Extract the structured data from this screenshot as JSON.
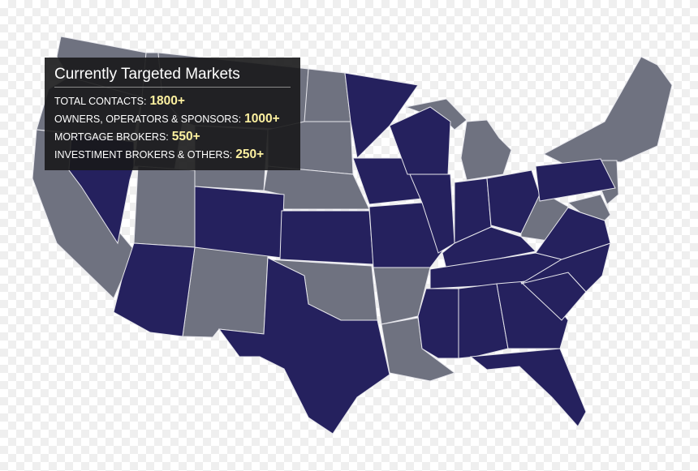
{
  "tooltip": {
    "title": "Currently Targeted Markets",
    "rows": [
      {
        "label": "TOTAL CONTACTS:",
        "value": "1800+"
      },
      {
        "label": "OWNERS, OPERATORS & SPONSORS:",
        "value": "1000+"
      },
      {
        "label": "MORTGAGE BROKERS:",
        "value": "550+"
      },
      {
        "label": "INVESTIMENT BROKERS & OTHERS:",
        "value": "250+"
      }
    ]
  }
}
